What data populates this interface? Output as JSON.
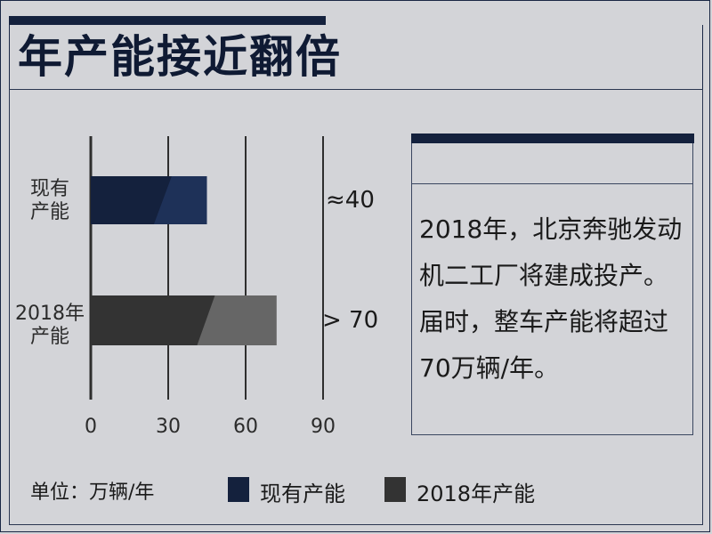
{
  "title": "年产能接近翻倍",
  "unit_label": "单位：万辆/年",
  "info_text": "2018年，北京奔驰发动机二工厂将建成投产。届时，整车产能将超过70万辆/年。",
  "legend": [
    {
      "label": "现有产能",
      "color": "#14213d"
    },
    {
      "label": "2018年产能",
      "color": "#333333"
    }
  ],
  "colors": {
    "current_dark": "#14213d",
    "current_light": "#1e3158",
    "future_dark": "#333333",
    "future_light": "#666666",
    "axis": "#2e2e2e"
  },
  "chart_data": {
    "type": "bar",
    "orientation": "horizontal",
    "categories": [
      "现有产能",
      "2018年产能"
    ],
    "category_lines": [
      [
        "现有",
        "产能"
      ],
      [
        "2018年",
        "产能"
      ]
    ],
    "values": [
      45,
      72
    ],
    "value_labels": [
      "≈40",
      "> 70"
    ],
    "xlim": [
      0,
      90
    ],
    "xticks": [
      0,
      30,
      60,
      90
    ],
    "xtick_labels": [
      "0",
      "30",
      "60",
      "90"
    ],
    "grid": "vertical lines at ticks"
  }
}
